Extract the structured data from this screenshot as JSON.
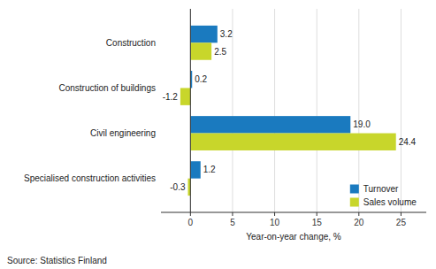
{
  "chart_data": {
    "type": "bar",
    "orientation": "horizontal",
    "categories": [
      "Specialised construction activities",
      "Civil engineering",
      "Construction of buildings",
      "Construction"
    ],
    "series": [
      {
        "name": "Turnover",
        "color": "#1a7abf",
        "values": [
          1.2,
          19.0,
          0.2,
          3.2
        ],
        "value_labels": [
          "1.2",
          "19.0",
          "0.2",
          "3.2"
        ]
      },
      {
        "name": "Sales volume",
        "color": "#c8d62b",
        "values": [
          -0.3,
          24.4,
          -1.2,
          2.5
        ],
        "value_labels": [
          "-0.3",
          "24.4",
          "-1.2",
          "2.5"
        ]
      }
    ],
    "x_label": "Year-on-year change, %",
    "xlim": [
      -3.5,
      28
    ],
    "xticks": [
      0,
      5,
      10,
      15,
      20,
      25
    ],
    "grid": true,
    "legend": "lower right",
    "data_labels": true,
    "annotations": [
      "Source: Statistics Finland"
    ]
  }
}
